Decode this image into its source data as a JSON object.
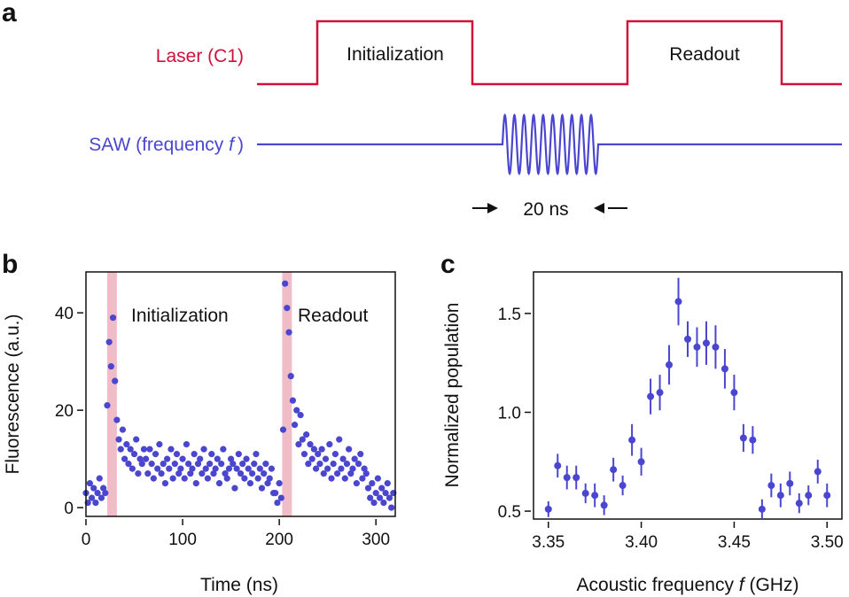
{
  "colors": {
    "laser": "#d0103a",
    "saw": "#4b46cf",
    "points": "#4b46cf",
    "highlight": "#f0bcc8"
  },
  "panel_a": {
    "label": "a",
    "laser_label": "Laser (C1)",
    "pulse1_label": "Initialization",
    "pulse2_label": "Readout",
    "saw_label_prefix": "SAW (frequency ",
    "saw_label_var": "f",
    "saw_label_suffix": ")",
    "duration_label": "20 ns",
    "burst_cycles": 10
  },
  "chart_data": [
    {
      "type": "scatter",
      "panel": "b",
      "xlabel": "Time (ns)",
      "ylabel": "Fluorescence (a.u.)",
      "xlim": [
        0,
        320
      ],
      "ylim": [
        -1.8,
        48.4
      ],
      "xticks": [
        0,
        100,
        200,
        300
      ],
      "yticks": [
        0,
        20,
        40
      ],
      "annotations": [
        "Initialization",
        "Readout"
      ],
      "highlight_ranges": [
        [
          22,
          32
        ],
        [
          203,
          213
        ]
      ],
      "x": [
        0,
        2,
        4,
        6,
        8,
        10,
        12,
        14,
        16,
        18,
        20,
        22,
        24,
        26,
        28,
        30,
        32,
        34,
        36,
        38,
        40,
        42,
        44,
        46,
        48,
        50,
        52,
        54,
        56,
        58,
        60,
        62,
        64,
        66,
        68,
        70,
        72,
        74,
        76,
        78,
        80,
        82,
        84,
        86,
        88,
        90,
        92,
        94,
        96,
        98,
        100,
        102,
        104,
        106,
        108,
        110,
        112,
        114,
        116,
        118,
        120,
        122,
        124,
        126,
        128,
        130,
        132,
        134,
        136,
        138,
        140,
        142,
        144,
        146,
        148,
        150,
        152,
        154,
        156,
        158,
        160,
        162,
        164,
        166,
        168,
        170,
        172,
        174,
        176,
        178,
        180,
        182,
        184,
        186,
        188,
        190,
        192,
        194,
        196,
        198,
        200,
        202,
        204,
        206,
        208,
        210,
        212,
        214,
        216,
        218,
        220,
        222,
        224,
        226,
        228,
        230,
        232,
        234,
        236,
        238,
        240,
        242,
        244,
        246,
        248,
        250,
        252,
        254,
        256,
        258,
        260,
        262,
        264,
        266,
        268,
        270,
        272,
        274,
        276,
        278,
        280,
        282,
        284,
        286,
        288,
        290,
        292,
        294,
        296,
        298,
        300,
        302,
        304,
        306,
        308,
        310,
        312,
        314,
        316,
        318
      ],
      "y": [
        3,
        1,
        5,
        2,
        4,
        1,
        3,
        6,
        2,
        4,
        3,
        21,
        34,
        29,
        39,
        26,
        18,
        14,
        12,
        16,
        10,
        13,
        9,
        12,
        8,
        11,
        14,
        7,
        10,
        9,
        12,
        10,
        7,
        12,
        9,
        6,
        11,
        8,
        13,
        7,
        9,
        5,
        10,
        8,
        12,
        6,
        9,
        11,
        7,
        8,
        10,
        6,
        13,
        9,
        7,
        8,
        11,
        5,
        9,
        10,
        7,
        12,
        8,
        6,
        9,
        11,
        7,
        8,
        10,
        5,
        9,
        12,
        7,
        6,
        8,
        10,
        9,
        4,
        8,
        11,
        7,
        9,
        6,
        10,
        8,
        5,
        7,
        9,
        11,
        6,
        8,
        4,
        7,
        9,
        5,
        6,
        8,
        3,
        3,
        1,
        5,
        2,
        16,
        46,
        41,
        36,
        27,
        22,
        17,
        20,
        13,
        19,
        14,
        11,
        15,
        9,
        13,
        10,
        12,
        8,
        11,
        9,
        12,
        7,
        10,
        8,
        13,
        6,
        9,
        11,
        7,
        14,
        8,
        10,
        6,
        9,
        12,
        7,
        8,
        10,
        5,
        9,
        11,
        6,
        8,
        7,
        4,
        2,
        5,
        1,
        3,
        6,
        2,
        4,
        1,
        3,
        5,
        2,
        0,
        3
      ]
    },
    {
      "type": "scatter",
      "panel": "c",
      "xlabel_prefix": "Acoustic frequency ",
      "xlabel_var": "f",
      "xlabel_suffix": " (GHz)",
      "ylabel": "Normalized population",
      "xlim": [
        3.342,
        3.508
      ],
      "ylim": [
        0.46,
        1.71
      ],
      "xticks": [
        "3.35",
        "3.40",
        "3.45",
        "3.50"
      ],
      "yticks": [
        "0.5",
        "1.0",
        "1.5"
      ],
      "x": [
        3.35,
        3.355,
        3.36,
        3.365,
        3.37,
        3.375,
        3.38,
        3.385,
        3.39,
        3.395,
        3.4,
        3.405,
        3.41,
        3.415,
        3.42,
        3.425,
        3.43,
        3.435,
        3.44,
        3.445,
        3.45,
        3.455,
        3.46,
        3.465,
        3.47,
        3.475,
        3.48,
        3.485,
        3.49,
        3.495,
        3.5
      ],
      "y": [
        0.51,
        0.73,
        0.67,
        0.67,
        0.59,
        0.58,
        0.53,
        0.71,
        0.63,
        0.86,
        0.75,
        1.08,
        1.1,
        1.24,
        1.56,
        1.37,
        1.33,
        1.35,
        1.33,
        1.22,
        1.1,
        0.87,
        0.86,
        0.51,
        0.63,
        0.58,
        0.64,
        0.54,
        0.58,
        0.7,
        0.58
      ],
      "error": [
        0.04,
        0.06,
        0.06,
        0.06,
        0.05,
        0.06,
        0.05,
        0.06,
        0.05,
        0.08,
        0.07,
        0.09,
        0.09,
        0.1,
        0.12,
        0.09,
        0.1,
        0.11,
        0.11,
        0.1,
        0.09,
        0.07,
        0.07,
        0.05,
        0.06,
        0.06,
        0.06,
        0.05,
        0.05,
        0.06,
        0.06
      ]
    }
  ]
}
